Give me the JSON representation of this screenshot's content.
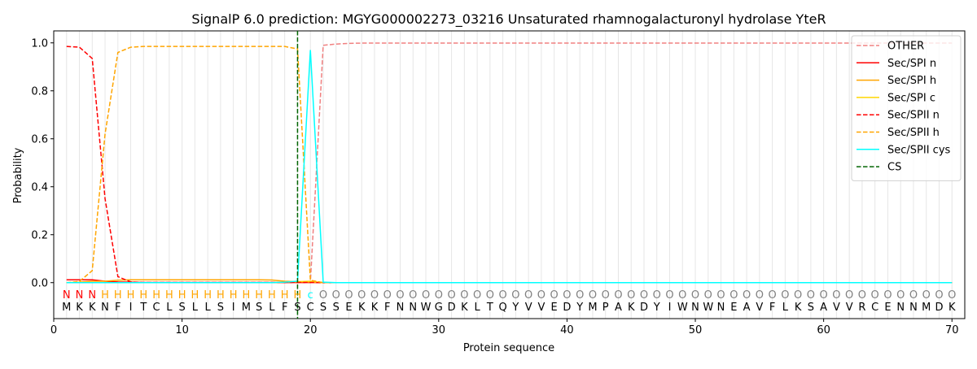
{
  "chart_data": {
    "type": "line",
    "title": "SignalP 6.0 prediction: MGYG000002273_03216 Unsaturated rhamnogalacturonyl hydrolase YteR",
    "xlabel": "Protein sequence",
    "ylabel": "Probability",
    "xlim": [
      0,
      71
    ],
    "ylim": [
      -0.15,
      1.05
    ],
    "xticks": [
      0,
      10,
      20,
      30,
      40,
      50,
      60,
      70
    ],
    "yticks": [
      0.0,
      0.2,
      0.4,
      0.6,
      0.8,
      1.0
    ],
    "grid": "vertical lines at each residue",
    "legend_position": "top-right",
    "sequence": [
      "M",
      "K",
      "K",
      "N",
      "F",
      "I",
      "T",
      "C",
      "L",
      "S",
      "L",
      "L",
      "S",
      "I",
      "M",
      "S",
      "L",
      "F",
      "S",
      "C",
      "S",
      "S",
      "E",
      "K",
      "K",
      "F",
      "N",
      "N",
      "W",
      "G",
      "D",
      "K",
      "L",
      "T",
      "Q",
      "Y",
      "V",
      "V",
      "E",
      "D",
      "Y",
      "M",
      "P",
      "A",
      "K",
      "D",
      "Y",
      "I",
      "W",
      "N",
      "W",
      "N",
      "E",
      "A",
      "V",
      "F",
      "L",
      "K",
      "S",
      "A",
      "V",
      "V",
      "R",
      "C",
      "E",
      "N",
      "N",
      "M",
      "D",
      "K"
    ],
    "labels": [
      "N",
      "N",
      "N",
      "H",
      "H",
      "H",
      "H",
      "H",
      "H",
      "H",
      "H",
      "H",
      "H",
      "H",
      "H",
      "H",
      "H",
      "H",
      "H",
      "c",
      "O",
      "O",
      "O",
      "O",
      "O",
      "O",
      "O",
      "O",
      "O",
      "O",
      "O",
      "O",
      "O",
      "O",
      "O",
      "O",
      "O",
      "O",
      "O",
      "O",
      "O",
      "O",
      "O",
      "O",
      "O",
      "O",
      "O",
      "O",
      "O",
      "O",
      "O",
      "O",
      "O",
      "O",
      "O",
      "O",
      "O",
      "O",
      "O",
      "O",
      "O",
      "O",
      "O",
      "O",
      "O",
      "O",
      "O",
      "O",
      "O",
      "O"
    ],
    "label_colors": {
      "N": "#ff0000",
      "H": "#ffa500",
      "c": "#00ffff",
      "O": "#808080"
    },
    "cleavage_site": 19,
    "series": [
      {
        "name": "OTHER",
        "color": "#f08080",
        "dash": true,
        "values": [
          0.0,
          0.0,
          0.0,
          0.0,
          0.0,
          0.0,
          0.0,
          0.0,
          0.0,
          0.0,
          0.0,
          0.0,
          0.0,
          0.0,
          0.0,
          0.0,
          0.0,
          0.0,
          0.0,
          0.0,
          0.99,
          0.995,
          0.998,
          0.999,
          0.999,
          0.999,
          0.999,
          0.999,
          0.999,
          0.999,
          0.999,
          0.999,
          0.999,
          0.999,
          0.999,
          0.999,
          0.999,
          0.999,
          0.999,
          0.999,
          0.999,
          0.999,
          0.999,
          0.999,
          0.999,
          0.999,
          0.999,
          0.999,
          0.999,
          0.999,
          0.999,
          0.999,
          0.999,
          0.999,
          0.999,
          0.999,
          0.999,
          0.999,
          0.999,
          0.999,
          0.999,
          0.999,
          0.999,
          0.999,
          0.999,
          0.999,
          0.999,
          0.999,
          0.999,
          0.999
        ]
      },
      {
        "name": "Sec/SPI n",
        "color": "#ff0000",
        "dash": false,
        "values": [
          0.012,
          0.012,
          0.012,
          0.006,
          0.003,
          0.002,
          0.001,
          0.001,
          0.001,
          0.001,
          0.001,
          0.001,
          0.001,
          0.001,
          0.001,
          0.001,
          0.001,
          0.001,
          0.001,
          0.001,
          0.0,
          0.0,
          0.0,
          0.0,
          0.0,
          0.0,
          0.0,
          0.0,
          0.0,
          0.0,
          0.0,
          0.0,
          0.0,
          0.0,
          0.0,
          0.0,
          0.0,
          0.0,
          0.0,
          0.0,
          0.0,
          0.0,
          0.0,
          0.0,
          0.0,
          0.0,
          0.0,
          0.0,
          0.0,
          0.0,
          0.0,
          0.0,
          0.0,
          0.0,
          0.0,
          0.0,
          0.0,
          0.0,
          0.0,
          0.0,
          0.0,
          0.0,
          0.0,
          0.0,
          0.0,
          0.0,
          0.0,
          0.0,
          0.0,
          0.0
        ]
      },
      {
        "name": "Sec/SPI h",
        "color": "#ffa500",
        "dash": false,
        "values": [
          0.0,
          0.002,
          0.006,
          0.006,
          0.01,
          0.012,
          0.012,
          0.012,
          0.012,
          0.012,
          0.012,
          0.012,
          0.012,
          0.012,
          0.012,
          0.012,
          0.011,
          0.006,
          0.004,
          0.003,
          0.0,
          0.0,
          0.0,
          0.0,
          0.0,
          0.0,
          0.0,
          0.0,
          0.0,
          0.0,
          0.0,
          0.0,
          0.0,
          0.0,
          0.0,
          0.0,
          0.0,
          0.0,
          0.0,
          0.0,
          0.0,
          0.0,
          0.0,
          0.0,
          0.0,
          0.0,
          0.0,
          0.0,
          0.0,
          0.0,
          0.0,
          0.0,
          0.0,
          0.0,
          0.0,
          0.0,
          0.0,
          0.0,
          0.0,
          0.0,
          0.0,
          0.0,
          0.0,
          0.0,
          0.0,
          0.0,
          0.0,
          0.0,
          0.0,
          0.0
        ]
      },
      {
        "name": "Sec/SPI c",
        "color": "#ffd700",
        "dash": false,
        "values": [
          0.0,
          0.0,
          0.0,
          0.0,
          0.0,
          0.0,
          0.0,
          0.0,
          0.0,
          0.0,
          0.0,
          0.0,
          0.0,
          0.0,
          0.0,
          0.0,
          0.0,
          0.002,
          0.004,
          0.006,
          0.0,
          0.0,
          0.0,
          0.0,
          0.0,
          0.0,
          0.0,
          0.0,
          0.0,
          0.0,
          0.0,
          0.0,
          0.0,
          0.0,
          0.0,
          0.0,
          0.0,
          0.0,
          0.0,
          0.0,
          0.0,
          0.0,
          0.0,
          0.0,
          0.0,
          0.0,
          0.0,
          0.0,
          0.0,
          0.0,
          0.0,
          0.0,
          0.0,
          0.0,
          0.0,
          0.0,
          0.0,
          0.0,
          0.0,
          0.0,
          0.0,
          0.0,
          0.0,
          0.0,
          0.0,
          0.0,
          0.0,
          0.0,
          0.0,
          0.0
        ]
      },
      {
        "name": "Sec/SPII n",
        "color": "#ff0000",
        "dash": true,
        "values": [
          0.985,
          0.982,
          0.935,
          0.35,
          0.025,
          0.003,
          0.001,
          0.001,
          0.001,
          0.001,
          0.001,
          0.001,
          0.001,
          0.001,
          0.001,
          0.001,
          0.001,
          0.001,
          0.001,
          0.001,
          0.0,
          0.0,
          0.0,
          0.0,
          0.0,
          0.0,
          0.0,
          0.0,
          0.0,
          0.0,
          0.0,
          0.0,
          0.0,
          0.0,
          0.0,
          0.0,
          0.0,
          0.0,
          0.0,
          0.0,
          0.0,
          0.0,
          0.0,
          0.0,
          0.0,
          0.0,
          0.0,
          0.0,
          0.0,
          0.0,
          0.0,
          0.0,
          0.0,
          0.0,
          0.0,
          0.0,
          0.0,
          0.0,
          0.0,
          0.0,
          0.0,
          0.0,
          0.0,
          0.0,
          0.0,
          0.0,
          0.0,
          0.0,
          0.0,
          0.0
        ]
      },
      {
        "name": "Sec/SPII h",
        "color": "#ffa500",
        "dash": true,
        "values": [
          0.0,
          0.005,
          0.05,
          0.62,
          0.96,
          0.982,
          0.985,
          0.985,
          0.985,
          0.985,
          0.985,
          0.985,
          0.985,
          0.985,
          0.985,
          0.985,
          0.985,
          0.985,
          0.975,
          0.01,
          0.0,
          0.0,
          0.0,
          0.0,
          0.0,
          0.0,
          0.0,
          0.0,
          0.0,
          0.0,
          0.0,
          0.0,
          0.0,
          0.0,
          0.0,
          0.0,
          0.0,
          0.0,
          0.0,
          0.0,
          0.0,
          0.0,
          0.0,
          0.0,
          0.0,
          0.0,
          0.0,
          0.0,
          0.0,
          0.0,
          0.0,
          0.0,
          0.0,
          0.0,
          0.0,
          0.0,
          0.0,
          0.0,
          0.0,
          0.0,
          0.0,
          0.0,
          0.0,
          0.0,
          0.0,
          0.0,
          0.0,
          0.0,
          0.0,
          0.0
        ]
      },
      {
        "name": "Sec/SPII cys",
        "color": "#00ffff",
        "dash": false,
        "values": [
          0.0,
          0.0,
          0.0,
          0.0,
          0.0,
          0.0,
          0.0,
          0.0,
          0.0,
          0.0,
          0.0,
          0.0,
          0.0,
          0.0,
          0.0,
          0.0,
          0.0,
          0.002,
          0.006,
          0.97,
          0.002,
          0.0,
          0.0,
          0.0,
          0.0,
          0.0,
          0.0,
          0.0,
          0.0,
          0.0,
          0.0,
          0.0,
          0.0,
          0.0,
          0.0,
          0.0,
          0.0,
          0.0,
          0.0,
          0.0,
          0.0,
          0.0,
          0.0,
          0.0,
          0.0,
          0.0,
          0.0,
          0.0,
          0.0,
          0.0,
          0.0,
          0.0,
          0.0,
          0.0,
          0.0,
          0.0,
          0.0,
          0.0,
          0.0,
          0.0,
          0.0,
          0.0,
          0.0,
          0.0,
          0.0,
          0.0,
          0.0,
          0.0,
          0.0,
          0.0
        ]
      }
    ],
    "cs_legend": {
      "name": "CS",
      "color": "#006400",
      "dash": true
    }
  }
}
